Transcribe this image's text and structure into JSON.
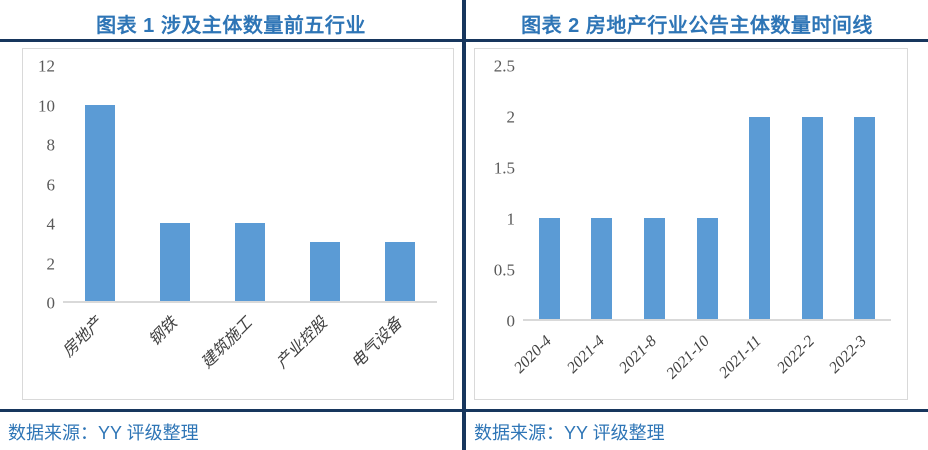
{
  "colors": {
    "accent_blue": "#2E75B6",
    "rule_navy": "#17365D",
    "bar_blue": "#5B9BD5",
    "axis_gray": "#D9D9D9",
    "tick_text": "#595959"
  },
  "figures": [
    {
      "header": "图表 1 涉及主体数量前五行业",
      "source_label": "数据来源：YY 评级整理"
    },
    {
      "header": "图表 2 房地产行业公告主体数量时间线",
      "source_label": "数据来源：YY 评级整理"
    }
  ],
  "chart_data": [
    {
      "type": "bar",
      "title": "图表 1 涉及主体数量前五行业",
      "categories": [
        "房地产",
        "钢铁",
        "建筑施工",
        "产业控股",
        "电气设备"
      ],
      "values": [
        10,
        4,
        4,
        3,
        3
      ],
      "xlabel": "",
      "ylabel": "",
      "ylim": [
        0,
        12
      ],
      "yticks": [
        0,
        2,
        4,
        6,
        8,
        10,
        12
      ],
      "grid": false,
      "legend": "none",
      "bar_color": "#5B9BD5",
      "x_tick_rotation": 45
    },
    {
      "type": "bar",
      "title": "图表 2 房地产行业公告主体数量时间线",
      "categories": [
        "2020-4",
        "2021-4",
        "2021-8",
        "2021-10",
        "2021-11",
        "2022-2",
        "2022-3"
      ],
      "values": [
        1,
        1,
        1,
        1,
        2,
        2,
        2
      ],
      "xlabel": "",
      "ylabel": "",
      "ylim": [
        0,
        2.5
      ],
      "yticks": [
        0,
        0.5,
        1,
        1.5,
        2,
        2.5
      ],
      "grid": false,
      "legend": "none",
      "bar_color": "#5B9BD5",
      "x_tick_rotation": 45
    }
  ]
}
